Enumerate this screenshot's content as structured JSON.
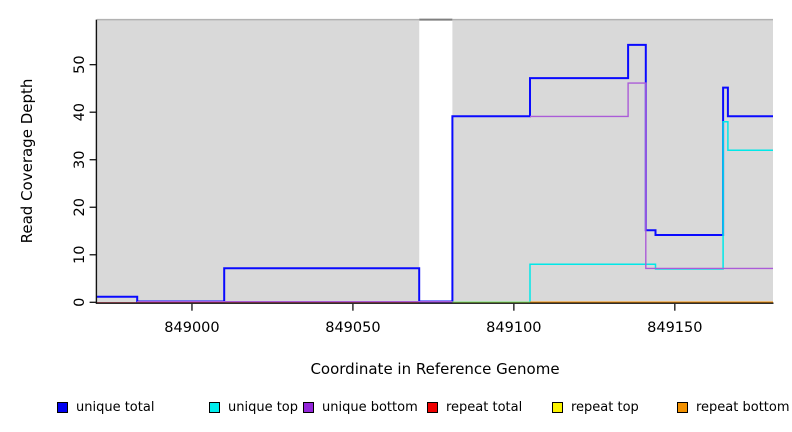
{
  "chart_data": {
    "type": "line",
    "style": "step",
    "title": "",
    "xlabel": "Coordinate in Reference Genome",
    "ylabel": "Read Coverage Depth",
    "xlim": [
      848970.5,
      849180.5
    ],
    "ylim": [
      0,
      59.4
    ],
    "x_ticks": [
      849000,
      849050,
      849100,
      849150
    ],
    "x_tick_labels": [
      "849000",
      "849050",
      "849100",
      "849150"
    ],
    "y_ticks": [
      0,
      10,
      20,
      30,
      40,
      50
    ],
    "y_tick_labels": [
      "0",
      "10",
      "20",
      "30",
      "40",
      "50"
    ],
    "grid": false,
    "plot_background": "#d9d9d9",
    "top_border_color": "#b2b2b2",
    "masked_region": {
      "x_start": 849070.6,
      "x_end": 849080.9,
      "color": "#ffffff",
      "border_color": "#7f7f7f"
    },
    "axis_color": "#111111",
    "series": [
      {
        "name": "unique total",
        "color": "#0a0aff",
        "width": 2,
        "dy": -0.8,
        "segments": [
          [
            [
              848970.5,
              1
            ],
            [
              848983,
              1
            ],
            [
              848983,
              0
            ],
            [
              849010,
              0
            ],
            [
              849010,
              7
            ],
            [
              849070.6,
              7
            ],
            [
              849070.6,
              0
            ],
            [
              849080.9,
              0
            ],
            [
              849080.9,
              39
            ],
            [
              849105,
              39
            ],
            [
              849105,
              47
            ],
            [
              849135.5,
              47
            ],
            [
              849135.5,
              54
            ],
            [
              849141,
              54
            ],
            [
              849141,
              15
            ],
            [
              849144,
              15
            ],
            [
              849144,
              14
            ],
            [
              849165,
              14
            ],
            [
              849165,
              45
            ],
            [
              849166.5,
              45
            ],
            [
              849166.5,
              39
            ],
            [
              849180.5,
              39
            ]
          ]
        ]
      },
      {
        "name": "unique top",
        "color": "#00e8e8",
        "width": 1.5,
        "dy": 0,
        "segments": [
          [
            [
              849080.9,
              0
            ],
            [
              849105,
              0
            ],
            [
              849105,
              8
            ],
            [
              849144,
              8
            ],
            [
              849144,
              7
            ],
            [
              849165,
              7
            ],
            [
              849165,
              38
            ],
            [
              849166.5,
              38
            ],
            [
              849166.5,
              32
            ],
            [
              849180.5,
              32
            ]
          ]
        ]
      },
      {
        "name": "unique bottom",
        "color": "#ab5cd8",
        "width": 1.4,
        "dy": -0.6,
        "segments": [
          [
            [
              848983,
              0
            ],
            [
              849080.9,
              0
            ]
          ],
          [
            [
              849105,
              39
            ],
            [
              849135.5,
              39
            ],
            [
              849135.5,
              46
            ],
            [
              849141,
              46
            ],
            [
              849141,
              7
            ],
            [
              849180.5,
              7
            ]
          ]
        ]
      },
      {
        "name": "repeat total",
        "color": "#e23b53",
        "width": 1.3,
        "dy": 0.5,
        "segments": [
          [
            [
              848970.5,
              0
            ],
            [
              849070.6,
              0
            ]
          ]
        ]
      },
      {
        "name": "repeat top",
        "color": "#f6f300",
        "width": 1.4,
        "dy": 0,
        "opacity": 0.65,
        "segments": [
          [
            [
              849080.9,
              0
            ],
            [
              849105,
              0
            ]
          ]
        ]
      },
      {
        "name": "repeat bottom",
        "color": "#ff9502",
        "width": 1.7,
        "dy": 0,
        "segments": [
          [
            [
              849105,
              0
            ],
            [
              849180.5,
              0
            ]
          ]
        ]
      }
    ],
    "legend": {
      "position": "bottom",
      "items": [
        {
          "label": "unique total",
          "color": "#0000f0"
        },
        {
          "label": "unique top",
          "color": "#00eded"
        },
        {
          "label": "unique bottom",
          "color": "#9326d9"
        },
        {
          "label": "repeat total",
          "color": "#ee0000"
        },
        {
          "label": "repeat top",
          "color": "#fbf300"
        },
        {
          "label": "repeat bottom",
          "color": "#f29100"
        }
      ]
    }
  }
}
